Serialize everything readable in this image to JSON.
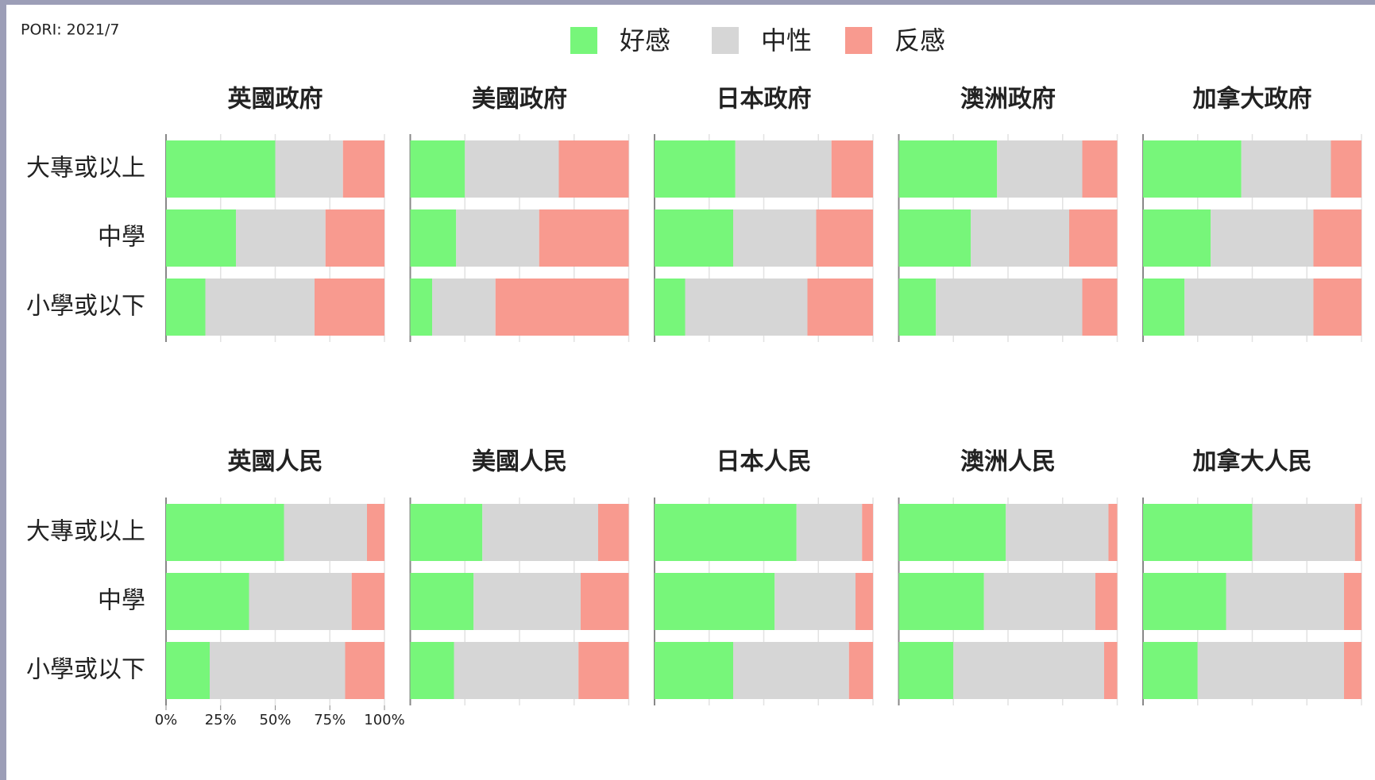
{
  "chart_data": {
    "type": "bar",
    "orientation": "horizontal",
    "stacked": true,
    "source": "PORI: 2021/7",
    "categories": [
      "大專或以上",
      "中學",
      "小學或以下"
    ],
    "legend": [
      {
        "name": "好感",
        "color": "#77f67a"
      },
      {
        "name": "中性",
        "color": "#d6d6d6"
      },
      {
        "name": "反感",
        "color": "#f89a8f"
      }
    ],
    "xlim": [
      0,
      100
    ],
    "xticks": [
      {
        "value": 0,
        "label": "0%"
      },
      {
        "value": 25,
        "label": "25%"
      },
      {
        "value": 50,
        "label": "50%"
      },
      {
        "value": 75,
        "label": "75%"
      },
      {
        "value": 100,
        "label": "100%"
      }
    ],
    "grid": true,
    "panels": [
      {
        "title": "英國政府",
        "series": [
          {
            "values": [
              50,
              32,
              18
            ]
          },
          {
            "values": [
              31,
              41,
              50
            ]
          },
          {
            "values": [
              19,
              27,
              32
            ]
          }
        ]
      },
      {
        "title": "美國政府",
        "series": [
          {
            "values": [
              25,
              21,
              10
            ]
          },
          {
            "values": [
              43,
              38,
              29
            ]
          },
          {
            "values": [
              32,
              41,
              61
            ]
          }
        ]
      },
      {
        "title": "日本政府",
        "series": [
          {
            "values": [
              37,
              36,
              14
            ]
          },
          {
            "values": [
              44,
              38,
              56
            ]
          },
          {
            "values": [
              19,
              26,
              30
            ]
          }
        ]
      },
      {
        "title": "澳洲政府",
        "series": [
          {
            "values": [
              45,
              33,
              17
            ]
          },
          {
            "values": [
              39,
              45,
              67
            ]
          },
          {
            "values": [
              16,
              22,
              16
            ]
          }
        ]
      },
      {
        "title": "加拿大政府",
        "series": [
          {
            "values": [
              45,
              31,
              19
            ]
          },
          {
            "values": [
              41,
              47,
              59
            ]
          },
          {
            "values": [
              14,
              22,
              22
            ]
          }
        ]
      },
      {
        "title": "英國人民",
        "series": [
          {
            "values": [
              54,
              38,
              20
            ]
          },
          {
            "values": [
              38,
              47,
              62
            ]
          },
          {
            "values": [
              8,
              15,
              18
            ]
          }
        ]
      },
      {
        "title": "美國人民",
        "series": [
          {
            "values": [
              33,
              29,
              20
            ]
          },
          {
            "values": [
              53,
              49,
              57
            ]
          },
          {
            "values": [
              14,
              22,
              23
            ]
          }
        ]
      },
      {
        "title": "日本人民",
        "series": [
          {
            "values": [
              65,
              55,
              36
            ]
          },
          {
            "values": [
              30,
              37,
              53
            ]
          },
          {
            "values": [
              5,
              8,
              11
            ]
          }
        ]
      },
      {
        "title": "澳洲人民",
        "series": [
          {
            "values": [
              49,
              39,
              25
            ]
          },
          {
            "values": [
              47,
              51,
              69
            ]
          },
          {
            "values": [
              4,
              10,
              6
            ]
          }
        ]
      },
      {
        "title": "加拿大人民",
        "series": [
          {
            "values": [
              50,
              38,
              25
            ]
          },
          {
            "values": [
              47,
              54,
              67
            ]
          },
          {
            "values": [
              3,
              8,
              8
            ]
          }
        ]
      }
    ]
  }
}
